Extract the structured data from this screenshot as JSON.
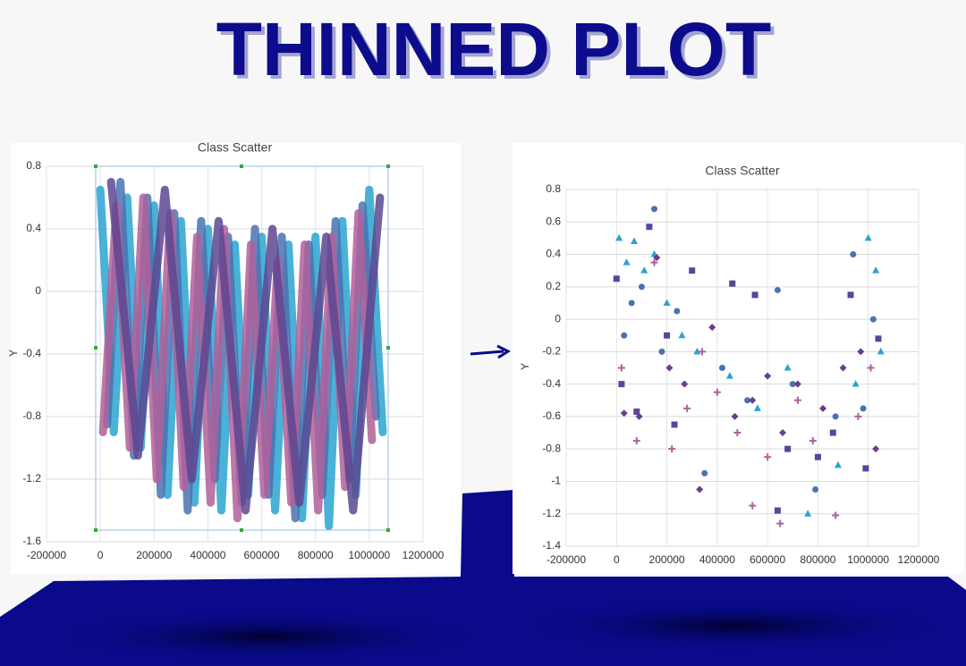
{
  "header": {
    "title": "THINNED PLOT"
  },
  "chart_data": [
    {
      "type": "line",
      "title": "Class Scatter",
      "y_label": "Y",
      "grid": true,
      "xlim": [
        -200000,
        1200000
      ],
      "xticks": [
        -200000,
        0,
        200000,
        400000,
        600000,
        800000,
        1000000,
        1200000
      ],
      "ylim": [
        -1.6,
        0.8
      ],
      "yticks": [
        -1.6,
        -1.2,
        -0.8,
        -0.4,
        0,
        0.4,
        0.8
      ],
      "series": [
        {
          "color": "#2aa3d0",
          "x": [
            0,
            50000,
            100000,
            150000,
            200000,
            250000,
            300000,
            350000,
            400000,
            450000,
            500000,
            550000,
            600000,
            650000,
            700000,
            750000,
            800000,
            850000,
            900000,
            950000,
            1000000,
            1050000
          ],
          "values": [
            0.65,
            -0.9,
            0.6,
            -1.0,
            0.55,
            -1.3,
            0.45,
            -1.35,
            0.4,
            -1.4,
            0.3,
            -1.3,
            0.35,
            -1.4,
            0.3,
            -1.45,
            0.35,
            -1.5,
            0.45,
            -1.3,
            0.65,
            -0.9
          ]
        },
        {
          "color": "#4a72b0",
          "x": [
            25000,
            75000,
            125000,
            175000,
            225000,
            275000,
            325000,
            375000,
            425000,
            475000,
            525000,
            575000,
            625000,
            675000,
            725000,
            775000,
            825000,
            875000,
            925000,
            975000,
            1025000
          ],
          "values": [
            -0.85,
            0.7,
            -1.05,
            0.6,
            -1.3,
            0.5,
            -1.4,
            0.45,
            -1.2,
            0.35,
            -1.35,
            0.4,
            -1.3,
            0.35,
            -1.45,
            0.3,
            -1.3,
            0.45,
            -1.2,
            0.55,
            -0.8
          ]
        },
        {
          "color": "#b0609a",
          "x": [
            10000,
            60000,
            110000,
            160000,
            210000,
            260000,
            310000,
            360000,
            410000,
            460000,
            510000,
            560000,
            610000,
            660000,
            710000,
            760000,
            810000,
            860000,
            910000,
            960000,
            1010000
          ],
          "values": [
            -0.9,
            0.55,
            -1.0,
            0.6,
            -1.2,
            0.5,
            -1.25,
            0.35,
            -1.35,
            0.4,
            -1.45,
            0.3,
            -1.3,
            0.2,
            -1.35,
            0.3,
            -1.4,
            0.35,
            -1.25,
            0.5,
            -0.95
          ]
        },
        {
          "color": "#5d4790",
          "x": [
            40000,
            140000,
            240000,
            340000,
            440000,
            540000,
            640000,
            740000,
            840000,
            940000,
            1040000
          ],
          "values": [
            0.7,
            -1.05,
            0.65,
            -1.2,
            0.45,
            -1.4,
            0.4,
            -1.35,
            0.35,
            -1.4,
            0.6
          ]
        }
      ]
    },
    {
      "type": "scatter",
      "title": "Class Scatter",
      "y_label": "Y",
      "grid": true,
      "xlim": [
        -200000,
        1200000
      ],
      "xticks": [
        -200000,
        0,
        200000,
        400000,
        600000,
        800000,
        1000000,
        1200000
      ],
      "ylim": [
        -1.4,
        0.8
      ],
      "yticks": [
        -1.4,
        -1.2,
        -1,
        -0.8,
        -0.6,
        -0.4,
        -0.2,
        0,
        0.2,
        0.4,
        0.6,
        0.8
      ],
      "series": [
        {
          "color": "#2aa3d0",
          "marker": "triangle",
          "x": [
            10000,
            40000,
            70000,
            110000,
            150000,
            200000,
            260000,
            320000,
            450000,
            560000,
            680000,
            760000,
            880000,
            950000,
            1000000,
            1030000,
            1050000
          ],
          "values": [
            0.5,
            0.35,
            0.48,
            0.3,
            0.4,
            0.1,
            -0.1,
            -0.2,
            -0.35,
            -0.55,
            -0.3,
            -1.2,
            -0.9,
            -0.4,
            0.5,
            0.3,
            -0.2
          ]
        },
        {
          "color": "#4a72b0",
          "marker": "circle",
          "x": [
            0,
            30000,
            60000,
            100000,
            150000,
            180000,
            240000,
            350000,
            420000,
            520000,
            640000,
            700000,
            790000,
            870000,
            940000,
            980000,
            1020000
          ],
          "values": [
            0.25,
            -0.1,
            0.1,
            0.2,
            0.68,
            -0.2,
            0.05,
            -0.95,
            -0.3,
            -0.5,
            0.18,
            -0.4,
            -1.05,
            -0.6,
            0.4,
            -0.55,
            0.0
          ]
        },
        {
          "color": "#55489a",
          "marker": "square",
          "x": [
            0,
            20000,
            80000,
            130000,
            200000,
            230000,
            300000,
            460000,
            550000,
            640000,
            680000,
            800000,
            860000,
            930000,
            990000,
            1040000
          ],
          "values": [
            0.25,
            -0.4,
            -0.57,
            0.57,
            -0.1,
            -0.65,
            0.3,
            0.22,
            0.15,
            -1.18,
            -0.8,
            -0.85,
            -0.7,
            0.15,
            -0.92,
            -0.12
          ]
        },
        {
          "color": "#6b3d8a",
          "marker": "diamond",
          "x": [
            30000,
            90000,
            160000,
            210000,
            270000,
            330000,
            380000,
            470000,
            540000,
            600000,
            660000,
            720000,
            820000,
            900000,
            970000,
            1030000
          ],
          "values": [
            -0.58,
            -0.6,
            0.38,
            -0.3,
            -0.4,
            -1.05,
            -0.05,
            -0.6,
            -0.5,
            -0.35,
            -0.7,
            -0.4,
            -0.55,
            -0.3,
            -0.2,
            -0.8
          ]
        },
        {
          "color": "#b0609a",
          "marker": "plus",
          "x": [
            20000,
            80000,
            150000,
            220000,
            280000,
            340000,
            400000,
            480000,
            540000,
            600000,
            650000,
            720000,
            780000,
            870000,
            960000,
            1010000
          ],
          "values": [
            -0.3,
            -0.75,
            0.35,
            -0.8,
            -0.55,
            -0.2,
            -0.45,
            -0.7,
            -1.15,
            -0.85,
            -1.26,
            -0.5,
            -0.75,
            -1.21,
            -0.6,
            -0.3
          ]
        }
      ]
    }
  ]
}
